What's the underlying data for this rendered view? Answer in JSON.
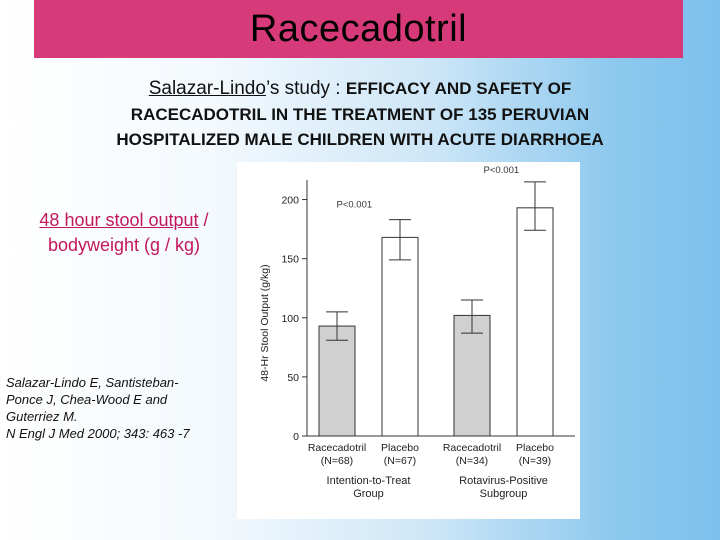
{
  "slide": {
    "title": "Racecadotril",
    "study_author": "Salazar-Lindo",
    "study_author_suffix": "’s study : ",
    "study_line1_caps": "EFFICACY AND SAFETY OF",
    "study_line2": "RACECADOTRIL IN THE TREATMENT OF 135 PERUVIAN",
    "study_line3": "HOSPITALIZED MALE CHILDREN WITH ACUTE DIARRHOEA",
    "measure_part1": "48 hour stool output",
    "measure_part2": " /",
    "measure_line2": "bodyweight (g / kg)",
    "reference_line1": "Salazar-Lindo E, Santisteban-",
    "reference_line2": "Ponce J, Chea-Wood E and",
    "reference_line3": "Guterriez M.",
    "reference_line4": "N Engl J Med 2000; 343: 463 -7"
  },
  "chart_data": {
    "type": "bar",
    "ylabel": "48-Hr Stool Output (g/kg)",
    "ylim": [
      0,
      225
    ],
    "yticks": [
      0,
      50,
      100,
      150,
      200
    ],
    "bars": [
      {
        "label": "Racecadotril",
        "n": "(N=68)",
        "value": 93,
        "err_low": 81,
        "err_high": 105,
        "fill": "#d0d0d0",
        "group": 0
      },
      {
        "label": "Placebo",
        "n": "(N=67)",
        "value": 168,
        "err_low": 149,
        "err_high": 183,
        "fill": "#ffffff",
        "group": 0
      },
      {
        "label": "Racecadotril",
        "n": "(N=34)",
        "value": 102,
        "err_low": 87,
        "err_high": 115,
        "fill": "#d0d0d0",
        "group": 1
      },
      {
        "label": "Placebo",
        "n": "(N=39)",
        "value": 193,
        "err_low": 174,
        "err_high": 215,
        "fill": "#ffffff",
        "group": 1
      }
    ],
    "groups": [
      {
        "line1": "Intention-to-Treat",
        "line2": "Group",
        "p_label": "P<0.001"
      },
      {
        "line1": "Rotavirus-Positive",
        "line2": "Subgroup",
        "p_label": "P<0.001"
      }
    ]
  }
}
